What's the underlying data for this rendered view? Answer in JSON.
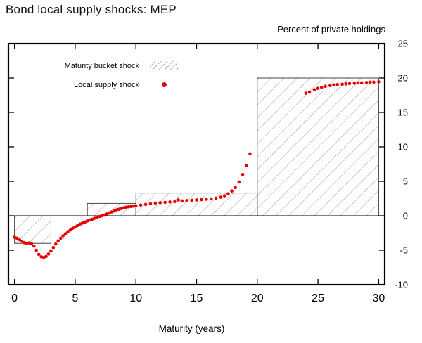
{
  "chart_data": {
    "type": "scatter",
    "title": "Bond local supply shocks: MEP",
    "units_label": "Percent of private holdings",
    "xlabel": "Maturity (years)",
    "xlim": [
      -0.5,
      30.5
    ],
    "ylim": [
      -10,
      25
    ],
    "xticks": [
      0,
      5,
      10,
      15,
      20,
      25,
      30
    ],
    "yticks": [
      25,
      20,
      15,
      10,
      5,
      0,
      -5,
      -10
    ],
    "grid": false,
    "legend": {
      "position": "top-left",
      "items": [
        {
          "label": "Maturity bucket shock",
          "marker": "hatch"
        },
        {
          "label": "Local supply shock",
          "marker": "red-dot"
        }
      ]
    },
    "colors": {
      "scatter": "#e60000",
      "hatch_line": "#9a9a9a",
      "bar_edge": "#333333",
      "frame": "#000000"
    },
    "series": [
      {
        "name": "Maturity bucket shock",
        "type": "bar-buckets",
        "buckets": [
          {
            "from": 0,
            "to": 3,
            "value": -4.0
          },
          {
            "from": 3,
            "to": 6,
            "value": 0.0
          },
          {
            "from": 6,
            "to": 10,
            "value": 1.8
          },
          {
            "from": 10,
            "to": 20,
            "value": 3.3
          },
          {
            "from": 20,
            "to": 30,
            "value": 20.0
          }
        ]
      },
      {
        "name": "Local supply shock",
        "type": "scatter",
        "points": [
          [
            0,
            -3.1
          ],
          [
            0.2,
            -3.25
          ],
          [
            0.4,
            -3.45
          ],
          [
            0.6,
            -3.7
          ],
          [
            0.8,
            -3.9
          ],
          [
            1.0,
            -4.0
          ],
          [
            1.2,
            -3.95
          ],
          [
            1.4,
            -4.05
          ],
          [
            1.6,
            -4.4
          ],
          [
            1.8,
            -5.0
          ],
          [
            2.0,
            -5.6
          ],
          [
            2.2,
            -5.95
          ],
          [
            2.4,
            -6.05
          ],
          [
            2.6,
            -5.9
          ],
          [
            2.8,
            -5.55
          ],
          [
            3.0,
            -5.1
          ],
          [
            3.2,
            -4.6
          ],
          [
            3.4,
            -4.1
          ],
          [
            3.6,
            -3.65
          ],
          [
            3.8,
            -3.25
          ],
          [
            4.0,
            -2.9
          ],
          [
            4.2,
            -2.6
          ],
          [
            4.4,
            -2.3
          ],
          [
            4.6,
            -2.05
          ],
          [
            4.8,
            -1.8
          ],
          [
            5.0,
            -1.6
          ],
          [
            5.2,
            -1.4
          ],
          [
            5.4,
            -1.2
          ],
          [
            5.6,
            -1.05
          ],
          [
            5.8,
            -0.9
          ],
          [
            6.0,
            -0.75
          ],
          [
            6.2,
            -0.6
          ],
          [
            6.4,
            -0.5
          ],
          [
            6.6,
            -0.35
          ],
          [
            6.8,
            -0.25
          ],
          [
            7.0,
            -0.1
          ],
          [
            7.2,
            0.0
          ],
          [
            7.4,
            0.1
          ],
          [
            7.6,
            0.25
          ],
          [
            7.8,
            0.4
          ],
          [
            8.0,
            0.55
          ],
          [
            8.2,
            0.7
          ],
          [
            8.4,
            0.85
          ],
          [
            8.6,
            0.95
          ],
          [
            8.8,
            1.05
          ],
          [
            9.0,
            1.15
          ],
          [
            9.2,
            1.25
          ],
          [
            9.4,
            1.3
          ],
          [
            9.6,
            1.35
          ],
          [
            9.8,
            1.4
          ],
          [
            10.0,
            1.45
          ],
          [
            10.4,
            1.55
          ],
          [
            10.8,
            1.65
          ],
          [
            11.2,
            1.75
          ],
          [
            11.6,
            1.85
          ],
          [
            12.0,
            1.9
          ],
          [
            12.4,
            1.95
          ],
          [
            12.8,
            2.0
          ],
          [
            13.2,
            2.05
          ],
          [
            13.5,
            2.3
          ],
          [
            13.8,
            2.15
          ],
          [
            14.2,
            2.2
          ],
          [
            14.6,
            2.25
          ],
          [
            15.0,
            2.3
          ],
          [
            15.4,
            2.35
          ],
          [
            15.8,
            2.4
          ],
          [
            16.2,
            2.45
          ],
          [
            16.6,
            2.55
          ],
          [
            17.0,
            2.7
          ],
          [
            17.3,
            2.9
          ],
          [
            17.6,
            3.2
          ],
          [
            17.9,
            3.6
          ],
          [
            18.2,
            4.1
          ],
          [
            18.5,
            4.9
          ],
          [
            18.8,
            6.0
          ],
          [
            19.1,
            7.3
          ],
          [
            19.4,
            9.0
          ],
          [
            24.0,
            17.8
          ],
          [
            24.3,
            17.95
          ],
          [
            24.7,
            18.3
          ],
          [
            25.0,
            18.5
          ],
          [
            25.3,
            18.65
          ],
          [
            25.6,
            18.8
          ],
          [
            26.0,
            18.9
          ],
          [
            26.3,
            19.0
          ],
          [
            26.6,
            19.05
          ],
          [
            27.0,
            19.1
          ],
          [
            27.3,
            19.15
          ],
          [
            27.6,
            19.2
          ],
          [
            28.0,
            19.25
          ],
          [
            28.3,
            19.3
          ],
          [
            28.6,
            19.3
          ],
          [
            29.0,
            19.35
          ],
          [
            29.3,
            19.4
          ],
          [
            29.6,
            19.4
          ],
          [
            30.0,
            19.45
          ]
        ]
      }
    ]
  }
}
